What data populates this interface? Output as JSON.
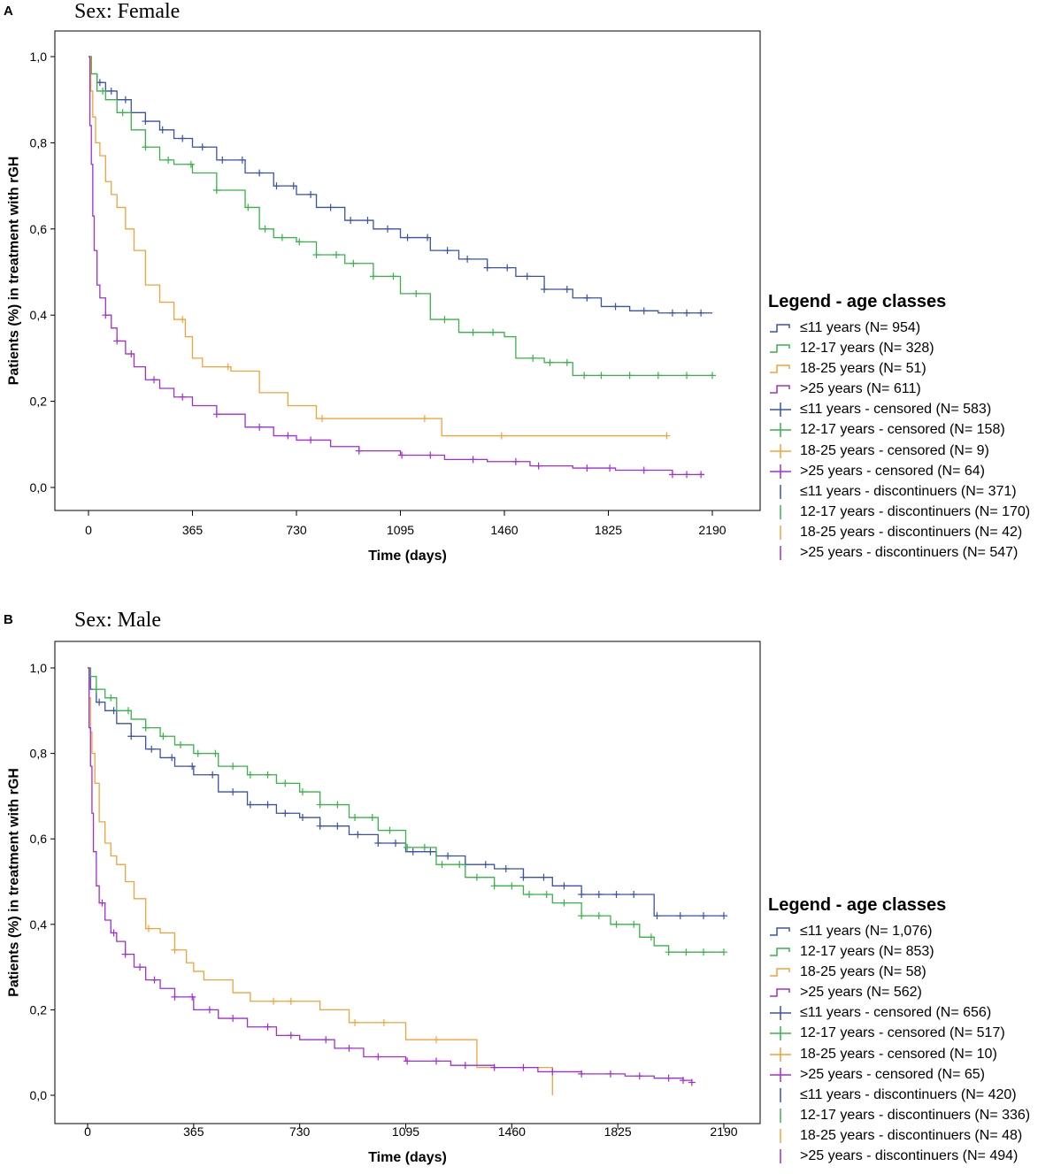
{
  "colors": {
    "le11": "#3a52a8",
    "y12_17": "#39b24a",
    "y18_25": "#f2a23a",
    "gt25": "#a12fd0",
    "axis": "#000000",
    "frame": "#000000"
  },
  "axis_common": {
    "ylabel": "Patients (%) in treatment with rGH",
    "xlabel": "Time (days)",
    "xticks": [
      0,
      365,
      730,
      1095,
      1460,
      1825,
      2190
    ],
    "yticks": [
      "0,0",
      "0,2",
      "0,4",
      "0,6",
      "0,8",
      "1,0"
    ],
    "ytick_values": [
      0,
      0.2,
      0.4,
      0.6,
      0.8,
      1.0
    ]
  },
  "panels": [
    {
      "letter": "A",
      "title": "Sex: Female",
      "legend_title": "Legend - age classes",
      "legend": [
        {
          "label": "≤11 years (N= 954)",
          "series": "le11",
          "marker": "line"
        },
        {
          "label": "12-17 years (N= 328)",
          "series": "y12_17",
          "marker": "line"
        },
        {
          "label": "18-25 years (N= 51)",
          "series": "y18_25",
          "marker": "line"
        },
        {
          "label": ">25 years (N= 611)",
          "series": "gt25",
          "marker": "line"
        },
        {
          "label": "≤11 years - censored (N= 583)",
          "series": "le11",
          "marker": "plus"
        },
        {
          "label": "12-17 years - censored (N= 158)",
          "series": "y12_17",
          "marker": "plus"
        },
        {
          "label": "18-25 years - censored (N= 9)",
          "series": "y18_25",
          "marker": "plus"
        },
        {
          "label": ">25 years - censored (N= 64)",
          "series": "gt25",
          "marker": "plus"
        },
        {
          "label": "≤11 years - discontinuers (N= 371)",
          "series": "le11",
          "marker": "tick"
        },
        {
          "label": "12-17 years - discontinuers (N= 170)",
          "series": "y12_17",
          "marker": "tick"
        },
        {
          "label": "18-25 years - discontinuers (N= 42)",
          "series": "y18_25",
          "marker": "tick"
        },
        {
          "label": ">25 years - discontinuers (N= 547)",
          "series": "gt25",
          "marker": "tick"
        }
      ]
    },
    {
      "letter": "B",
      "title": "Sex: Male",
      "legend_title": "Legend - age classes",
      "legend": [
        {
          "label": "≤11 years (N= 1,076)",
          "series": "le11",
          "marker": "line"
        },
        {
          "label": "12-17 years (N= 853)",
          "series": "y12_17",
          "marker": "line"
        },
        {
          "label": "18-25 years (N= 58)",
          "series": "y18_25",
          "marker": "line"
        },
        {
          "label": ">25 years (N= 562)",
          "series": "gt25",
          "marker": "line"
        },
        {
          "label": "≤11 years - censored (N= 656)",
          "series": "le11",
          "marker": "plus"
        },
        {
          "label": "12-17 years - censored (N= 517)",
          "series": "y12_17",
          "marker": "plus"
        },
        {
          "label": "18-25 years - censored (N= 10)",
          "series": "y18_25",
          "marker": "plus"
        },
        {
          "label": ">25 years - censored (N= 65)",
          "series": "gt25",
          "marker": "plus"
        },
        {
          "label": "≤11 years - discontinuers (N= 420)",
          "series": "le11",
          "marker": "tick"
        },
        {
          "label": "12-17 years - discontinuers (N= 336)",
          "series": "y12_17",
          "marker": "tick"
        },
        {
          "label": "18-25 years - discontinuers (N= 48)",
          "series": "y18_25",
          "marker": "tick"
        },
        {
          "label": ">25 years - discontinuers (N= 494)",
          "series": "gt25",
          "marker": "tick"
        }
      ]
    }
  ],
  "chart_data": [
    {
      "type": "line",
      "subtype": "kaplan-meier-step",
      "title": "Sex: Female",
      "xlabel": "Time (days)",
      "ylabel": "Patients (%) in treatment with rGH",
      "xlim": [
        -120,
        2300
      ],
      "ylim": [
        -0.05,
        1.05
      ],
      "series": [
        {
          "name": "≤11 years",
          "color_key": "le11",
          "x": [
            0,
            10,
            30,
            60,
            100,
            150,
            200,
            250,
            300,
            365,
            450,
            550,
            650,
            730,
            800,
            900,
            1000,
            1095,
            1200,
            1300,
            1400,
            1500,
            1600,
            1700,
            1800,
            1900,
            2000,
            2100,
            2190
          ],
          "y": [
            1.0,
            0.96,
            0.94,
            0.92,
            0.9,
            0.87,
            0.85,
            0.83,
            0.81,
            0.79,
            0.76,
            0.73,
            0.7,
            0.68,
            0.65,
            0.62,
            0.6,
            0.58,
            0.55,
            0.53,
            0.51,
            0.49,
            0.46,
            0.44,
            0.42,
            0.41,
            0.405,
            0.405,
            0.405
          ],
          "censored_x": [
            40,
            80,
            130,
            200,
            260,
            330,
            400,
            470,
            540,
            600,
            660,
            720,
            780,
            850,
            920,
            980,
            1050,
            1120,
            1190,
            1260,
            1330,
            1400,
            1470,
            1540,
            1600,
            1680,
            1750,
            1850,
            1950,
            2050,
            2100,
            2150
          ]
        },
        {
          "name": "12-17 years",
          "color_key": "y12_17",
          "x": [
            0,
            10,
            30,
            60,
            100,
            150,
            200,
            250,
            300,
            365,
            450,
            550,
            600,
            650,
            730,
            800,
            900,
            1000,
            1095,
            1200,
            1300,
            1460,
            1500,
            1600,
            1700,
            1800,
            1900,
            2000,
            2100,
            2190
          ],
          "y": [
            1.0,
            0.96,
            0.92,
            0.9,
            0.87,
            0.83,
            0.79,
            0.76,
            0.75,
            0.73,
            0.69,
            0.65,
            0.6,
            0.58,
            0.57,
            0.54,
            0.52,
            0.49,
            0.45,
            0.39,
            0.36,
            0.35,
            0.3,
            0.29,
            0.26,
            0.26,
            0.26,
            0.26,
            0.26,
            0.26
          ],
          "censored_x": [
            50,
            120,
            200,
            280,
            360,
            450,
            560,
            620,
            680,
            740,
            800,
            870,
            930,
            1000,
            1070,
            1150,
            1250,
            1350,
            1420,
            1560,
            1620,
            1680,
            1740,
            1800,
            1900,
            2000,
            2100,
            2190
          ]
        },
        {
          "name": "18-25 years",
          "color_key": "y18_25",
          "x": [
            0,
            8,
            15,
            25,
            40,
            60,
            80,
            100,
            130,
            160,
            200,
            250,
            300,
            340,
            365,
            400,
            500,
            600,
            700,
            800,
            900,
            1000,
            1100,
            1240,
            1400,
            1600,
            1800,
            2030
          ],
          "y": [
            1.0,
            0.92,
            0.86,
            0.8,
            0.77,
            0.71,
            0.68,
            0.65,
            0.6,
            0.55,
            0.47,
            0.43,
            0.39,
            0.35,
            0.3,
            0.28,
            0.27,
            0.22,
            0.19,
            0.16,
            0.16,
            0.16,
            0.16,
            0.12,
            0.12,
            0.12,
            0.12,
            0.12
          ],
          "censored_x": [
            330,
            490,
            820,
            1180,
            1450,
            2030
          ]
        },
        {
          "name": ">25 years",
          "color_key": "gt25",
          "x": [
            0,
            5,
            10,
            15,
            20,
            30,
            40,
            60,
            80,
            100,
            130,
            160,
            200,
            250,
            300,
            365,
            450,
            550,
            650,
            730,
            850,
            950,
            1095,
            1250,
            1400,
            1550,
            1700,
            1850,
            1950,
            2050,
            2160
          ],
          "y": [
            1.0,
            0.84,
            0.75,
            0.63,
            0.55,
            0.47,
            0.44,
            0.4,
            0.37,
            0.34,
            0.31,
            0.28,
            0.25,
            0.23,
            0.21,
            0.19,
            0.17,
            0.14,
            0.12,
            0.11,
            0.095,
            0.085,
            0.075,
            0.065,
            0.06,
            0.05,
            0.045,
            0.04,
            0.04,
            0.03,
            0.03
          ],
          "censored_x": [
            60,
            100,
            150,
            230,
            330,
            450,
            600,
            700,
            780,
            950,
            1100,
            1200,
            1350,
            1500,
            1580,
            1750,
            1830,
            1950,
            2050,
            2100,
            2150
          ]
        }
      ]
    },
    {
      "type": "line",
      "subtype": "kaplan-meier-step",
      "title": "Sex: Male",
      "xlabel": "Time (days)",
      "ylabel": "Patients (%) in treatment with rGH",
      "xlim": [
        -120,
        2300
      ],
      "ylim": [
        -0.05,
        1.05
      ],
      "series": [
        {
          "name": "≤11 years",
          "color_key": "le11",
          "x": [
            0,
            10,
            30,
            60,
            100,
            150,
            200,
            250,
            300,
            365,
            450,
            550,
            650,
            730,
            800,
            900,
            1000,
            1095,
            1200,
            1300,
            1400,
            1500,
            1600,
            1700,
            1800,
            1900,
            1950,
            2000,
            2100,
            2190
          ],
          "y": [
            1.0,
            0.95,
            0.92,
            0.9,
            0.87,
            0.84,
            0.81,
            0.79,
            0.77,
            0.75,
            0.71,
            0.68,
            0.66,
            0.65,
            0.63,
            0.61,
            0.59,
            0.57,
            0.56,
            0.54,
            0.53,
            0.51,
            0.49,
            0.47,
            0.47,
            0.47,
            0.42,
            0.42,
            0.42,
            0.42
          ],
          "censored_x": [
            40,
            90,
            150,
            220,
            290,
            360,
            430,
            500,
            560,
            620,
            680,
            740,
            800,
            860,
            930,
            1000,
            1060,
            1120,
            1180,
            1240,
            1300,
            1370,
            1440,
            1500,
            1570,
            1640,
            1700,
            1760,
            1820,
            1880,
            1960,
            2040,
            2120,
            2190
          ]
        },
        {
          "name": "12-17 years",
          "color_key": "y12_17",
          "x": [
            0,
            10,
            30,
            60,
            100,
            150,
            200,
            250,
            300,
            365,
            450,
            550,
            650,
            730,
            800,
            900,
            1000,
            1095,
            1200,
            1300,
            1400,
            1500,
            1600,
            1700,
            1800,
            1900,
            1950,
            2000,
            2100,
            2190
          ],
          "y": [
            1.0,
            0.98,
            0.95,
            0.93,
            0.9,
            0.88,
            0.86,
            0.84,
            0.82,
            0.8,
            0.77,
            0.75,
            0.73,
            0.71,
            0.68,
            0.65,
            0.62,
            0.58,
            0.54,
            0.51,
            0.49,
            0.47,
            0.45,
            0.42,
            0.4,
            0.37,
            0.35,
            0.335,
            0.335,
            0.335
          ],
          "censored_x": [
            30,
            80,
            140,
            200,
            260,
            320,
            380,
            440,
            500,
            560,
            620,
            680,
            740,
            800,
            860,
            920,
            980,
            1040,
            1100,
            1160,
            1220,
            1280,
            1340,
            1400,
            1460,
            1520,
            1580,
            1640,
            1700,
            1760,
            1820,
            1880,
            1940,
            2000,
            2060,
            2120,
            2190
          ]
        },
        {
          "name": "18-25 years",
          "color_key": "y18_25",
          "x": [
            0,
            5,
            10,
            15,
            25,
            40,
            60,
            80,
            100,
            130,
            160,
            200,
            250,
            300,
            340,
            365,
            400,
            500,
            560,
            600,
            700,
            800,
            900,
            1000,
            1095,
            1200,
            1340,
            1460,
            1560,
            1600
          ],
          "y": [
            1.0,
            0.93,
            0.85,
            0.8,
            0.73,
            0.64,
            0.59,
            0.56,
            0.54,
            0.5,
            0.46,
            0.39,
            0.38,
            0.34,
            0.31,
            0.29,
            0.27,
            0.24,
            0.22,
            0.22,
            0.22,
            0.2,
            0.17,
            0.17,
            0.13,
            0.13,
            0.065,
            0.065,
            0.065,
            0.0
          ],
          "censored_x": [
            210,
            300,
            640,
            700,
            920,
            1020,
            1200
          ]
        },
        {
          "name": ">25 years",
          "color_key": "gt25",
          "x": [
            0,
            5,
            10,
            15,
            20,
            30,
            40,
            60,
            80,
            100,
            130,
            160,
            200,
            250,
            300,
            365,
            450,
            550,
            650,
            730,
            850,
            950,
            1095,
            1250,
            1400,
            1550,
            1700,
            1850,
            1950,
            2050,
            2080
          ],
          "y": [
            1.0,
            0.86,
            0.77,
            0.66,
            0.57,
            0.49,
            0.45,
            0.41,
            0.38,
            0.36,
            0.33,
            0.3,
            0.27,
            0.25,
            0.23,
            0.2,
            0.18,
            0.16,
            0.14,
            0.13,
            0.11,
            0.09,
            0.08,
            0.07,
            0.065,
            0.055,
            0.05,
            0.045,
            0.04,
            0.035,
            0.03
          ],
          "censored_x": [
            50,
            90,
            130,
            180,
            230,
            300,
            360,
            420,
            500,
            620,
            700,
            820,
            900,
            1000,
            1100,
            1200,
            1300,
            1400,
            1500,
            1600,
            1700,
            1800,
            1900,
            2000,
            2050,
            2080
          ]
        }
      ]
    }
  ]
}
